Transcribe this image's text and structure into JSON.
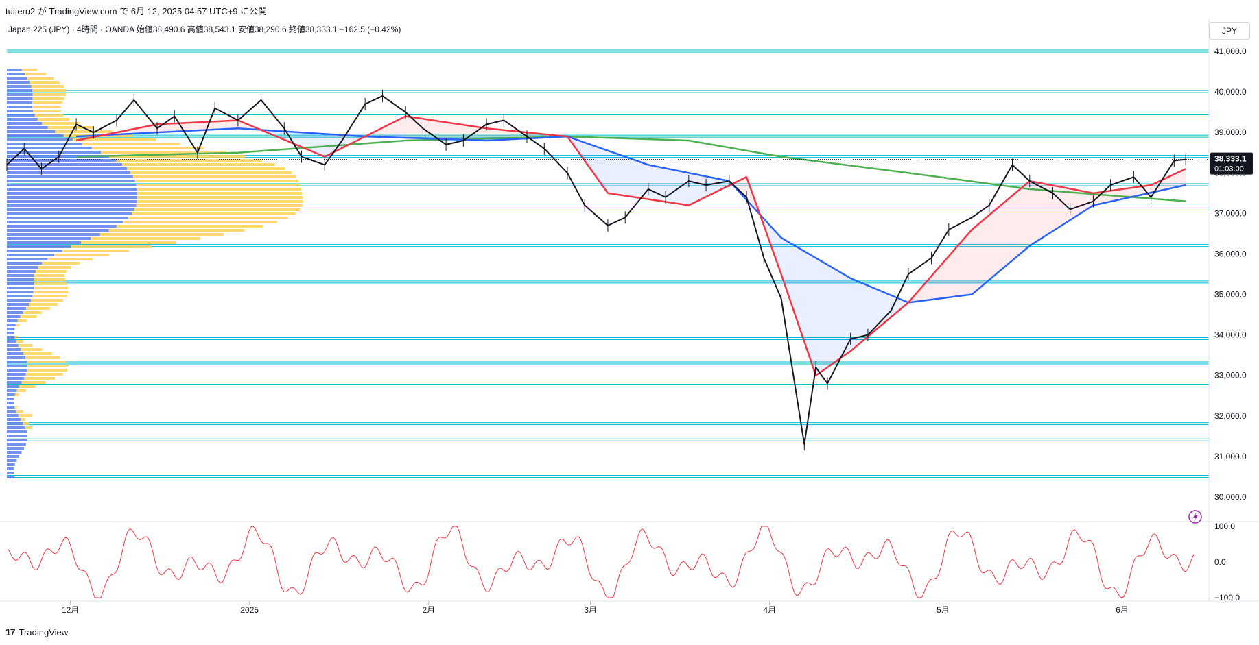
{
  "header": {
    "caption": "tuiteru2 が TradingView.com で 6月 12, 2025 04:57 UTC+9 に公開",
    "legend": "Japan 225 (JPY) · 4時間 · OANDA  始値38,490.6  高値38,543.1  安値38,290.6  終値38,333.1  −162.5 (−0.42%)",
    "currency_button": "JPY"
  },
  "price_tag": {
    "price": "38,333.1",
    "countdown": "01:03:00"
  },
  "footer": {
    "brand": "TradingView"
  },
  "colors": {
    "price_line": "#131722",
    "ma_fast": "#f23645",
    "ma_mid": "#2962ff",
    "ma_slow": "#4caf50",
    "sr_lines": "#00bcd4",
    "volume_blue": "#5b7fe8",
    "volume_yellow": "#ffd257",
    "oscillator": "#f23645"
  },
  "chart_data": {
    "type": "line",
    "title": "Japan 225 (JPY)",
    "y_axis": {
      "min": 30000,
      "max": 41000,
      "ticks": [
        "41,000.0",
        "40,000.0",
        "39,000.0",
        "38,000.0",
        "37,000.0",
        "36,000.0",
        "35,000.0",
        "34,000.0",
        "33,000.0",
        "32,000.0",
        "31,000.0",
        "30,000.0"
      ]
    },
    "x_axis": {
      "labels": [
        "12月",
        "2025",
        "2月",
        "3月",
        "4月",
        "5月",
        "6月"
      ]
    },
    "last_price": 38333.1,
    "series": [
      {
        "name": "price",
        "x": [
          "2024-11-20",
          "2024-11-23",
          "2024-11-26",
          "2024-11-29",
          "2024-12-02",
          "2024-12-05",
          "2024-12-09",
          "2024-12-12",
          "2024-12-16",
          "2024-12-19",
          "2024-12-23",
          "2024-12-26",
          "2024-12-30",
          "2025-01-03",
          "2025-01-07",
          "2025-01-10",
          "2025-01-14",
          "2025-01-17",
          "2025-01-21",
          "2025-01-24",
          "2025-01-28",
          "2025-01-31",
          "2025-02-04",
          "2025-02-07",
          "2025-02-11",
          "2025-02-14",
          "2025-02-18",
          "2025-02-21",
          "2025-02-25",
          "2025-02-28",
          "2025-03-04",
          "2025-03-07",
          "2025-03-11",
          "2025-03-14",
          "2025-03-18",
          "2025-03-21",
          "2025-03-25",
          "2025-03-28",
          "2025-03-31",
          "2025-04-03",
          "2025-04-07",
          "2025-04-09",
          "2025-04-11",
          "2025-04-15",
          "2025-04-18",
          "2025-04-22",
          "2025-04-25",
          "2025-04-29",
          "2025-05-02",
          "2025-05-06",
          "2025-05-09",
          "2025-05-13",
          "2025-05-16",
          "2025-05-20",
          "2025-05-23",
          "2025-05-27",
          "2025-05-30",
          "2025-06-03",
          "2025-06-06",
          "2025-06-10",
          "2025-06-12"
        ],
        "y": [
          38200,
          38600,
          38100,
          38400,
          39200,
          39000,
          39300,
          39800,
          39100,
          39400,
          38500,
          39600,
          39300,
          39800,
          39100,
          38400,
          38200,
          38800,
          39700,
          39900,
          39500,
          39100,
          38700,
          38800,
          39200,
          39300,
          38900,
          38600,
          38000,
          37200,
          36700,
          36900,
          37600,
          37400,
          37800,
          37700,
          37800,
          37400,
          35900,
          34900,
          31300,
          33200,
          32800,
          33900,
          34000,
          34600,
          35500,
          35900,
          36600,
          36900,
          37200,
          38200,
          37800,
          37500,
          37100,
          37300,
          37700,
          37900,
          37400,
          38300,
          38333
        ]
      },
      {
        "name": "ma_fast",
        "x": [
          "2024-12-02",
          "2024-12-16",
          "2024-12-30",
          "2025-01-14",
          "2025-01-28",
          "2025-02-11",
          "2025-02-25",
          "2025-03-04",
          "2025-03-18",
          "2025-03-28",
          "2025-04-03",
          "2025-04-09",
          "2025-04-15",
          "2025-04-25",
          "2025-05-06",
          "2025-05-16",
          "2025-05-27",
          "2025-06-06",
          "2025-06-12"
        ],
        "y": [
          38800,
          39200,
          39300,
          38400,
          39400,
          39100,
          38900,
          37500,
          37200,
          37900,
          35500,
          33000,
          33600,
          34800,
          36600,
          37800,
          37500,
          37700,
          38100
        ]
      },
      {
        "name": "ma_mid",
        "x": [
          "2024-12-02",
          "2024-12-30",
          "2025-01-21",
          "2025-02-11",
          "2025-02-25",
          "2025-03-11",
          "2025-03-25",
          "2025-04-03",
          "2025-04-15",
          "2025-04-25",
          "2025-05-06",
          "2025-05-16",
          "2025-05-27",
          "2025-06-12"
        ],
        "y": [
          38900,
          39100,
          38900,
          38800,
          38900,
          38200,
          37800,
          36400,
          35400,
          34800,
          35000,
          36200,
          37200,
          37700
        ]
      },
      {
        "name": "ma_slow",
        "x": [
          "2024-12-02",
          "2024-12-30",
          "2025-01-28",
          "2025-02-25",
          "2025-03-18",
          "2025-04-03",
          "2025-04-25",
          "2025-05-16",
          "2025-06-12"
        ],
        "y": [
          38400,
          38500,
          38800,
          38900,
          38800,
          38400,
          38000,
          37600,
          37300
        ]
      }
    ],
    "support_resistance_levels": [
      41000,
      40000,
      39400,
      38900,
      38400,
      37700,
      37100,
      36200,
      35300,
      33900,
      33300,
      32800,
      31800,
      31400,
      30500
    ],
    "oscillator": {
      "ticks": [
        "100.0",
        "0.0",
        "−100.0"
      ],
      "min": -100,
      "max": 100
    }
  }
}
